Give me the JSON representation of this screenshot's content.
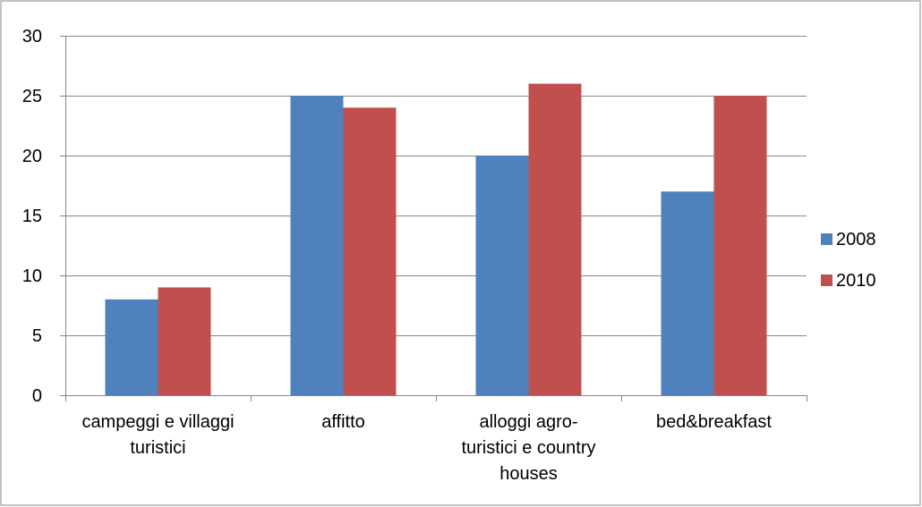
{
  "chart_data": {
    "type": "bar",
    "categories": [
      [
        "campeggi e villaggi",
        "turistici"
      ],
      [
        "affitto"
      ],
      [
        "alloggi agro-",
        "turistici e country",
        "houses"
      ],
      [
        "bed&breakfast"
      ]
    ],
    "series": [
      {
        "name": "2008",
        "values": [
          8,
          25,
          20,
          17
        ]
      },
      {
        "name": "2010",
        "values": [
          9,
          24,
          26,
          25
        ]
      }
    ],
    "colors": [
      "#4F81BD",
      "#C0504D"
    ],
    "ylim": [
      0,
      30
    ],
    "yticks": [
      0,
      5,
      10,
      15,
      20,
      25,
      30
    ],
    "grid": true,
    "legend_position": "right",
    "title": "",
    "xlabel": "",
    "ylabel": ""
  }
}
